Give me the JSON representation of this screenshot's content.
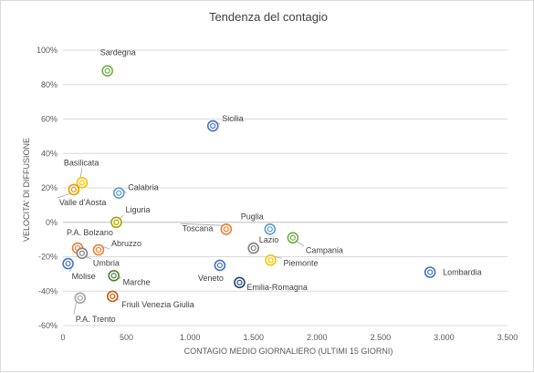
{
  "chart_data": {
    "type": "scatter",
    "title": "Tendenza del contagio",
    "xlabel": "CONTAGIO MEDIO GIORNALIERO (ULTIMI 15 GIORNI)",
    "ylabel": "VELOCITA' DI DIFFUSIONE",
    "xlim": [
      0,
      3500
    ],
    "ylim": [
      -60,
      100
    ],
    "x_ticks": [
      "0",
      "500",
      "1.000",
      "1.500",
      "2.000",
      "2.500",
      "3.000",
      "3.500"
    ],
    "y_ticks": [
      "-60%",
      "-40%",
      "-20%",
      "0%",
      "20%",
      "40%",
      "60%",
      "80%",
      "100%"
    ],
    "grid": "horizontal",
    "legend": "none",
    "points": [
      {
        "label": "Sardegna",
        "x": 350,
        "y": 88,
        "color": "#70ad47"
      },
      {
        "label": "Sicilia",
        "x": 1180,
        "y": 56,
        "color": "#4472c4"
      },
      {
        "label": "Basilicata",
        "x": 150,
        "y": 23,
        "color": "#ffc000"
      },
      {
        "label": "Valle d'Aosta",
        "x": 85,
        "y": 19,
        "color": "#ed9b00"
      },
      {
        "label": "Calabria",
        "x": 440,
        "y": 17,
        "color": "#5b9bd5"
      },
      {
        "label": "Liguria",
        "x": 420,
        "y": 0,
        "color": "#a5a500"
      },
      {
        "label": "P.A. Bolzano",
        "x": 115,
        "y": -15,
        "color": "#ed7d31"
      },
      {
        "label": "Abruzzo",
        "x": 280,
        "y": -16,
        "color": "#ed7d31"
      },
      {
        "label": "Umbria",
        "x": 150,
        "y": -18,
        "color": "#7f7f7f"
      },
      {
        "label": "Molise",
        "x": 40,
        "y": -24,
        "color": "#4472c4"
      },
      {
        "label": "Marche",
        "x": 400,
        "y": -31,
        "color": "#548235"
      },
      {
        "label": "Friuli Venezia Giulia",
        "x": 390,
        "y": -43,
        "color": "#c55a11"
      },
      {
        "label": "P.A. Trento",
        "x": 135,
        "y": -44,
        "color": "#a5a5a5"
      },
      {
        "label": "Toscana",
        "x": 1285,
        "y": -4,
        "color": "#ed7d31"
      },
      {
        "label": "Puglia",
        "x": 1630,
        "y": -4,
        "color": "#5b9bd5"
      },
      {
        "label": "Lazio",
        "x": 1500,
        "y": -15,
        "color": "#7f7f7f"
      },
      {
        "label": "Campania",
        "x": 1810,
        "y": -9,
        "color": "#70ad47"
      },
      {
        "label": "Piemonte",
        "x": 1635,
        "y": -22,
        "color": "#ffc000"
      },
      {
        "label": "Veneto",
        "x": 1235,
        "y": -25,
        "color": "#4472c4"
      },
      {
        "label": "Emilia-Romagna",
        "x": 1390,
        "y": -35,
        "color": "#264478"
      },
      {
        "label": "Lombardia",
        "x": 2890,
        "y": -29,
        "color": "#4472c4"
      }
    ]
  }
}
